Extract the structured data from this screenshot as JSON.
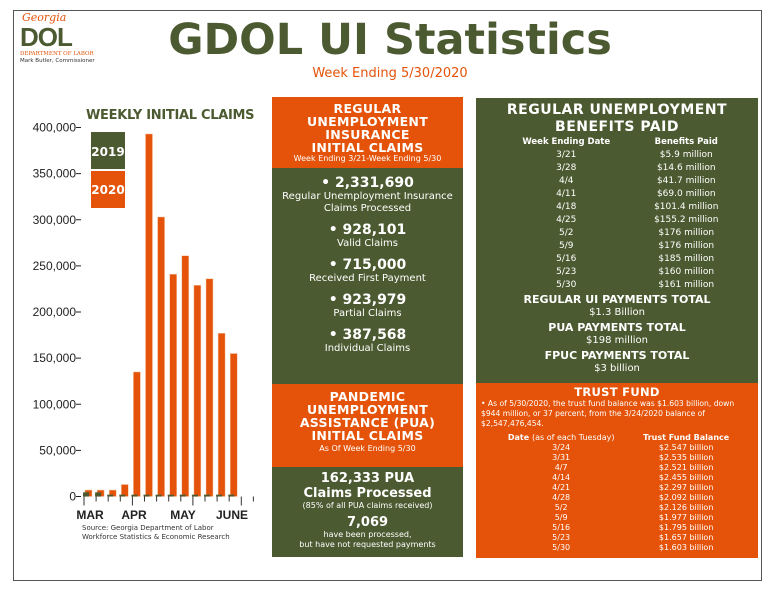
{
  "logo": {
    "state": "Georgia",
    "org": "DOL",
    "dept": "DEPARTMENT OF LABOR",
    "commissioner": "Mark Butler, Commissioner"
  },
  "header": {
    "title": "GDOL UI Statistics",
    "subtitle": "Week Ending 5/30/2020"
  },
  "colors": {
    "green": "#4c5a31",
    "orange": "#e45309"
  },
  "chart_data": {
    "type": "bar",
    "title": "WEEKLY INITIAL CLAIMS",
    "x_labels": [
      "MAR",
      "APR",
      "MAY",
      "JUNE"
    ],
    "yticks": [
      "0",
      "50,000",
      "100,000",
      "150,000",
      "200,000",
      "250,000",
      "300,000",
      "350,000",
      "400,000"
    ],
    "ylim": [
      0,
      400000
    ],
    "grid": false,
    "legend_position": "top-left",
    "series": [
      {
        "name": "2019",
        "color": "#4c5a31",
        "values": [
          4500,
          4500,
          2000,
          2000,
          2000,
          2000,
          2000,
          2000,
          2000,
          2000,
          2000,
          2000,
          2000
        ]
      },
      {
        "name": "2020",
        "color": "#e45309",
        "values": [
          7000,
          7000,
          7000,
          13000,
          135000,
          393000,
          303000,
          241000,
          261000,
          229000,
          236000,
          177000,
          155000
        ]
      }
    ],
    "source": [
      "Source:  Georgia Department of Labor",
      "Workforce Statistics & Economic Research"
    ]
  },
  "regular_claims": {
    "title_lines": [
      "REGULAR",
      "UNEMPLOYMENT",
      "INSURANCE",
      "INITIAL CLAIMS"
    ],
    "period": "Week Ending 3/21-Week Ending 5/30",
    "stats": [
      {
        "value": "• 2,331,690",
        "label": "Regular Unemployment Insurance Claims Processed"
      },
      {
        "value": "• 928,101",
        "label": "Valid Claims"
      },
      {
        "value": "• 715,000",
        "label": "Received First Payment"
      },
      {
        "value": "• 923,979",
        "label": "Partial Claims"
      },
      {
        "value": "• 387,568",
        "label": "Individual Claims"
      }
    ]
  },
  "pua": {
    "title_lines": [
      "PANDEMIC",
      "UNEMPLOYMENT",
      "ASSISTANCE (PUA)",
      "INITIAL CLAIMS"
    ],
    "period": "As Of Week Ending 5/30",
    "processed": "162,333  PUA",
    "processed_label": "Claims Processed",
    "processed_note": "(85% of all PUA claims received)",
    "pending": "7,069",
    "pending_line1": "have been processed,",
    "pending_line2": "but have not requested payments"
  },
  "benefits": {
    "title_lines": [
      "REGULAR UNEMPLOYMENT",
      "BENEFITS PAID"
    ],
    "col_date": "Week Ending Date",
    "col_paid": "Benefits Paid",
    "rows": [
      [
        "3/21",
        "$5.9 million"
      ],
      [
        "3/28",
        "$14.6 million"
      ],
      [
        "4/4",
        "$41.7 million"
      ],
      [
        "4/11",
        "$69.0 million"
      ],
      [
        "4/18",
        "$101.4 million"
      ],
      [
        "4/25",
        "$155.2 million"
      ],
      [
        "5/2",
        "$176 million"
      ],
      [
        "5/9",
        "$176 million"
      ],
      [
        "5/16",
        "$185 million"
      ],
      [
        "5/23",
        "$160 million"
      ],
      [
        "5/30",
        "$161 million"
      ]
    ],
    "totals": [
      {
        "label": "REGULAR UI PAYMENTS TOTAL",
        "value": "$1.3 Billion"
      },
      {
        "label": "PUA PAYMENTS TOTAL",
        "value": "$198 million"
      },
      {
        "label": "FPUC PAYMENTS TOTAL",
        "value": "$3 billion"
      }
    ]
  },
  "trust_fund": {
    "title": "TRUST FUND",
    "note": "• As of 5/30/2020, the trust fund balance was $1.603 billion, down $944 million, or 37 percent, from the 3/24/2020 balance of $2,547,476,454.",
    "col_date": "Date",
    "col_date_note": "(as of each Tuesday)",
    "col_balance": "Trust Fund Balance",
    "rows": [
      [
        "3/24",
        "$2.547 billion"
      ],
      [
        "3/31",
        "$2.535 billion"
      ],
      [
        "4/7",
        "$2.521 billion"
      ],
      [
        "4/14",
        "$2.455 billion"
      ],
      [
        "4/21",
        "$2.297 billion"
      ],
      [
        "4/28",
        "$2.092 billion"
      ],
      [
        "5/2",
        "$2.126 billion"
      ],
      [
        "5/9",
        "$1.977 billion"
      ],
      [
        "5/16",
        "$1.795 billion"
      ],
      [
        "5/23",
        "$1.657 billion"
      ],
      [
        "5/30",
        "$1.603 billion"
      ]
    ]
  }
}
